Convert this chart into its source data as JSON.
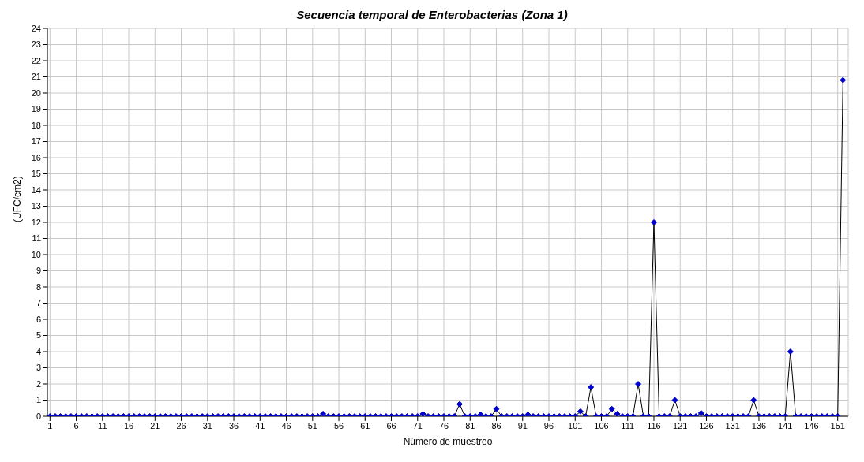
{
  "chart_data": {
    "type": "line",
    "title": "Secuencia temporal de Enterobacterias (Zona 1)",
    "xlabel": "Número de muestreo",
    "ylabel": "(UFC/cm2)",
    "x": [
      1,
      2,
      3,
      4,
      5,
      6,
      7,
      8,
      9,
      10,
      11,
      12,
      13,
      14,
      15,
      16,
      17,
      18,
      19,
      20,
      21,
      22,
      23,
      24,
      25,
      26,
      27,
      28,
      29,
      30,
      31,
      32,
      33,
      34,
      35,
      36,
      37,
      38,
      39,
      40,
      41,
      42,
      43,
      44,
      45,
      46,
      47,
      48,
      49,
      50,
      51,
      52,
      53,
      54,
      55,
      56,
      57,
      58,
      59,
      60,
      61,
      62,
      63,
      64,
      65,
      66,
      67,
      68,
      69,
      70,
      71,
      72,
      73,
      74,
      75,
      76,
      77,
      78,
      79,
      80,
      81,
      82,
      83,
      84,
      85,
      86,
      87,
      88,
      89,
      90,
      91,
      92,
      93,
      94,
      95,
      96,
      97,
      98,
      99,
      100,
      101,
      102,
      103,
      104,
      105,
      106,
      107,
      108,
      109,
      110,
      111,
      112,
      113,
      114,
      115,
      116,
      117,
      118,
      119,
      120,
      121,
      122,
      123,
      124,
      125,
      126,
      127,
      128,
      129,
      130,
      131,
      132,
      133,
      134,
      135,
      136,
      137,
      138,
      139,
      140,
      141,
      142,
      143,
      144,
      145,
      146,
      147,
      148,
      149,
      150,
      151,
      152
    ],
    "series": [
      {
        "color": "#0000cc",
        "values": [
          0,
          0,
          0,
          0,
          0,
          0,
          0,
          0,
          0,
          0,
          0,
          0,
          0,
          0,
          0,
          0,
          0,
          0,
          0,
          0,
          0,
          0,
          0,
          0,
          0,
          0,
          0,
          0,
          0,
          0,
          0,
          0,
          0,
          0,
          0,
          0,
          0,
          0,
          0,
          0,
          0,
          0,
          0,
          0,
          0,
          0,
          0,
          0,
          0,
          0,
          0,
          0,
          0.15,
          0,
          0,
          0,
          0,
          0,
          0,
          0,
          0,
          0,
          0,
          0,
          0,
          0,
          0,
          0,
          0,
          0,
          0,
          0.15,
          0,
          0,
          0,
          0,
          0,
          0,
          0.75,
          0,
          0,
          0,
          0.1,
          0,
          0,
          0.45,
          0,
          0,
          0,
          0,
          0,
          0.1,
          0,
          0,
          0,
          0,
          0,
          0,
          0,
          0,
          0,
          0.3,
          0,
          1.8,
          0,
          0,
          0,
          0.45,
          0.15,
          0,
          0,
          0,
          2,
          0,
          0,
          12,
          0,
          0,
          0,
          1,
          0,
          0,
          0,
          0,
          0.2,
          0,
          0,
          0,
          0,
          0,
          0,
          0,
          0,
          0,
          1,
          0,
          0,
          0,
          0,
          0,
          0,
          4,
          0,
          0,
          0,
          0,
          0,
          0,
          0,
          0,
          0,
          20.8
        ]
      }
    ],
    "xlim": [
      0.5,
      153
    ],
    "xticks": [
      1,
      6,
      11,
      16,
      21,
      26,
      31,
      36,
      41,
      46,
      51,
      56,
      61,
      66,
      71,
      76,
      81,
      86,
      91,
      96,
      101,
      106,
      111,
      116,
      121,
      126,
      131,
      136,
      141,
      146,
      151
    ],
    "ylim": [
      0,
      24
    ],
    "yticks": [
      0,
      1,
      2,
      3,
      4,
      5,
      6,
      7,
      8,
      9,
      10,
      11,
      12,
      13,
      14,
      15,
      16,
      17,
      18,
      19,
      20,
      21,
      22,
      23,
      24
    ],
    "grid": true,
    "marker": "diamond",
    "line_style": "solid",
    "legend": false
  }
}
